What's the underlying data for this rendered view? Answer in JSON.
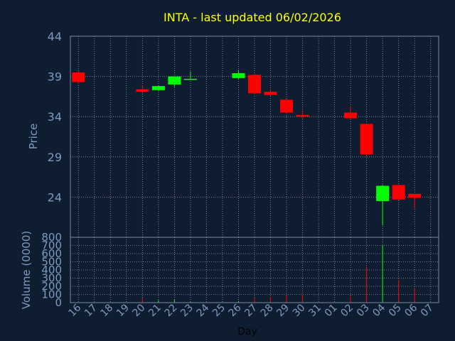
{
  "chart_data": {
    "type": "candlestick",
    "title": "INTA - last updated 06/02/2026",
    "ylabel": "Price",
    "volume_ylabel": "Volume (0000)",
    "xlabel": "Day",
    "ylim": [
      19,
      44
    ],
    "price_ticks": [
      44,
      39,
      34,
      29,
      24
    ],
    "volume_ylim": [
      0,
      800
    ],
    "volume_ticks": [
      0,
      100,
      200,
      300,
      400,
      500,
      600,
      700,
      800
    ],
    "x_ticks": [
      "16",
      "17",
      "18",
      "19",
      "20",
      "21",
      "22",
      "23",
      "24",
      "25",
      "26",
      "27",
      "28",
      "29",
      "30",
      "31",
      "01",
      "02",
      "03",
      "04",
      "05",
      "06",
      "07"
    ],
    "grid": true,
    "colors": {
      "background": "#0e1e30",
      "plot_border": "#7a8ba0",
      "grid": "#8a9bb0",
      "up": "#00ff00",
      "down": "#ff0000",
      "title": "#ffff00",
      "axis_text": "#7d9ac0",
      "xlabel": "#000000"
    },
    "candles": [
      {
        "x": "16",
        "open": 39.5,
        "high": 39.7,
        "low": 38.1,
        "close": 38.3,
        "volume": 0
      },
      {
        "x": "20",
        "open": 37.4,
        "high": 37.9,
        "low": 36.9,
        "close": 37.1,
        "volume": 60
      },
      {
        "x": "21",
        "open": 37.3,
        "high": 37.9,
        "low": 37.2,
        "close": 37.8,
        "volume": 30
      },
      {
        "x": "22",
        "open": 38.0,
        "high": 39.0,
        "low": 37.7,
        "close": 39.0,
        "volume": 40
      },
      {
        "x": "23",
        "open": 38.6,
        "high": 39.6,
        "low": 38.6,
        "close": 38.7,
        "volume": 10
      },
      {
        "x": "26",
        "open": 38.8,
        "high": 39.8,
        "low": 38.7,
        "close": 39.4,
        "volume": 20
      },
      {
        "x": "27",
        "open": 39.2,
        "high": 39.3,
        "low": 36.8,
        "close": 36.9,
        "volume": 60
      },
      {
        "x": "28",
        "open": 37.1,
        "high": 37.4,
        "low": 36.6,
        "close": 36.7,
        "volume": 70
      },
      {
        "x": "29",
        "open": 36.1,
        "high": 36.2,
        "low": 34.4,
        "close": 34.5,
        "volume": 90
      },
      {
        "x": "30",
        "open": 34.2,
        "high": 34.8,
        "low": 33.6,
        "close": 34.0,
        "volume": 100
      },
      {
        "x": "02",
        "open": 34.5,
        "high": 35.3,
        "low": 33.7,
        "close": 33.8,
        "volume": 80
      },
      {
        "x": "03",
        "open": 33.1,
        "high": 33.1,
        "low": 29.0,
        "close": 29.3,
        "volume": 440
      },
      {
        "x": "04",
        "open": 23.5,
        "high": 25.5,
        "low": 20.5,
        "close": 25.4,
        "volume": 700
      },
      {
        "x": "05",
        "open": 25.5,
        "high": 25.5,
        "low": 23.6,
        "close": 23.7,
        "volume": 280
      },
      {
        "x": "06",
        "open": 24.4,
        "high": 24.4,
        "low": 22.6,
        "close": 23.9,
        "volume": 180
      }
    ]
  }
}
